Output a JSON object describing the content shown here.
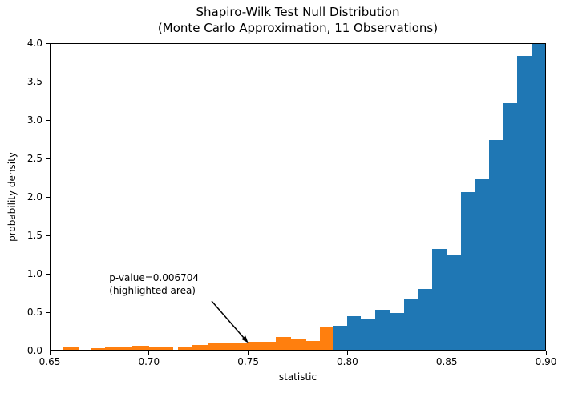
{
  "chart_data": {
    "type": "bar",
    "title_line1": "Shapiro-Wilk Test Null Distribution",
    "title_line2": "(Monte Carlo Approximation, 11 Observations)",
    "xlabel": "statistic",
    "ylabel": "probability density",
    "xlim": [
      0.65,
      0.9
    ],
    "ylim": [
      0,
      4
    ],
    "grid": false,
    "legend": "none",
    "x_ticks": [
      {
        "value": 0.65,
        "label": "0.65"
      },
      {
        "value": 0.7,
        "label": "0.70"
      },
      {
        "value": 0.75,
        "label": "0.75"
      },
      {
        "value": 0.8,
        "label": "0.80"
      },
      {
        "value": 0.85,
        "label": "0.85"
      },
      {
        "value": 0.9,
        "label": "0.90"
      }
    ],
    "y_ticks": [
      {
        "value": 0.0,
        "label": "0.0"
      },
      {
        "value": 0.5,
        "label": "0.5"
      },
      {
        "value": 1.0,
        "label": "1.0"
      },
      {
        "value": 1.5,
        "label": "1.5"
      },
      {
        "value": 2.0,
        "label": "2.0"
      },
      {
        "value": 2.5,
        "label": "2.5"
      },
      {
        "value": 3.0,
        "label": "3.0"
      },
      {
        "value": 3.5,
        "label": "3.5"
      },
      {
        "value": 4.0,
        "label": "4.0"
      }
    ],
    "series": [
      {
        "name": "null-distribution",
        "color": "#1f77b4",
        "bars": [
          [
            0.7926,
            0.7998,
            0.31
          ],
          [
            0.7998,
            0.807,
            0.44
          ],
          [
            0.807,
            0.8142,
            0.41
          ],
          [
            0.8142,
            0.8213,
            0.52
          ],
          [
            0.8213,
            0.8285,
            0.48
          ],
          [
            0.8285,
            0.8357,
            0.67
          ],
          [
            0.8357,
            0.8429,
            0.8
          ],
          [
            0.8429,
            0.8501,
            1.32
          ],
          [
            0.8501,
            0.8573,
            1.25
          ],
          [
            0.8573,
            0.8645,
            2.06
          ],
          [
            0.8645,
            0.8717,
            2.23
          ],
          [
            0.8717,
            0.8789,
            2.74
          ],
          [
            0.8789,
            0.886,
            3.23
          ],
          [
            0.886,
            0.8932,
            3.84
          ],
          [
            0.8932,
            0.9,
            4.0
          ]
        ]
      },
      {
        "name": "highlighted-area",
        "color": "#ff7f0e",
        "bars": [
          [
            0.6563,
            0.664,
            0.028
          ],
          [
            0.6707,
            0.6776,
            0.022
          ],
          [
            0.6776,
            0.6913,
            0.028
          ],
          [
            0.6913,
            0.6998,
            0.055
          ],
          [
            0.6998,
            0.7119,
            0.031
          ],
          [
            0.7146,
            0.7214,
            0.045
          ],
          [
            0.7214,
            0.7294,
            0.06
          ],
          [
            0.7294,
            0.7496,
            0.08
          ],
          [
            0.7496,
            0.764,
            0.101
          ],
          [
            0.764,
            0.7716,
            0.17
          ],
          [
            0.7716,
            0.7792,
            0.141
          ],
          [
            0.7792,
            0.786,
            0.118
          ],
          [
            0.786,
            0.7926,
            0.3
          ]
        ]
      }
    ],
    "annotation": {
      "line1": "p-value=0.006704",
      "line2": "(highlighted area)",
      "p_value": 0.006704,
      "text_xy": [
        0.68,
        0.7
      ],
      "arrow_from_xy": [
        0.7316,
        0.645
      ],
      "arrow_to_xy": [
        0.75,
        0.1
      ],
      "color": "#000000"
    }
  }
}
